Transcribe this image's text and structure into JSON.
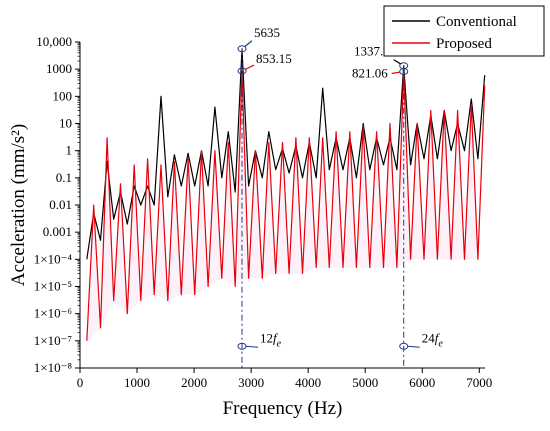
{
  "chart_data": {
    "type": "line",
    "title": "",
    "xlabel": "Frequency (Hz)",
    "ylabel": "Acceleration (mm/s²)",
    "xlim": [
      0,
      7100
    ],
    "ylim_log10": [
      -8,
      4
    ],
    "log_y": true,
    "grid": false,
    "legend_position": "top-right",
    "xticks": [
      "0",
      "1000",
      "2000",
      "3000",
      "4000",
      "5000",
      "6000",
      "7000"
    ],
    "xtick_values": [
      0,
      1000,
      2000,
      3000,
      4000,
      5000,
      6000,
      7000
    ],
    "yticks": [
      "1×10⁻⁸",
      "1×10⁻⁷",
      "1×10⁻⁶",
      "1×10⁻⁵",
      "1×10⁻⁴",
      "0.001",
      "0.01",
      "0.1",
      "1",
      "10",
      "100",
      "1000",
      "10,000"
    ],
    "ytick_exponents": [
      -8,
      -7,
      -6,
      -5,
      -4,
      -3,
      -2,
      -1,
      0,
      1,
      2,
      3,
      4
    ],
    "series": [
      {
        "name": "Conventional",
        "color": "#000000",
        "points": [
          [
            120,
            0.0001
          ],
          [
            240,
            0.005
          ],
          [
            360,
            0.0005
          ],
          [
            475,
            0.4
          ],
          [
            590,
            0.003
          ],
          [
            710,
            0.03
          ],
          [
            830,
            0.002
          ],
          [
            950,
            0.05
          ],
          [
            1065,
            0.01
          ],
          [
            1185,
            0.05
          ],
          [
            1300,
            0.01
          ],
          [
            1420,
            100
          ],
          [
            1540,
            0.02
          ],
          [
            1655,
            0.7
          ],
          [
            1775,
            0.05
          ],
          [
            1895,
            0.8
          ],
          [
            2010,
            0.05
          ],
          [
            2130,
            1
          ],
          [
            2245,
            0.05
          ],
          [
            2365,
            40
          ],
          [
            2485,
            0.1
          ],
          [
            2600,
            5
          ],
          [
            2720,
            0.03
          ],
          [
            2840,
            5635
          ],
          [
            2955,
            0.05
          ],
          [
            3075,
            1
          ],
          [
            3195,
            0.1
          ],
          [
            3310,
            5
          ],
          [
            3430,
            0.2
          ],
          [
            3550,
            1.2
          ],
          [
            3665,
            0.15
          ],
          [
            3785,
            1.5
          ],
          [
            3900,
            0.1
          ],
          [
            4020,
            2
          ],
          [
            4140,
            0.1
          ],
          [
            4255,
            200
          ],
          [
            4370,
            0.2
          ],
          [
            4490,
            3
          ],
          [
            4610,
            0.2
          ],
          [
            4730,
            3
          ],
          [
            4845,
            0.1
          ],
          [
            4965,
            10
          ],
          [
            5080,
            0.2
          ],
          [
            5200,
            3
          ],
          [
            5320,
            0.3
          ],
          [
            5435,
            3
          ],
          [
            5555,
            0.2
          ],
          [
            5675,
            1337.9
          ],
          [
            5795,
            0.3
          ],
          [
            5910,
            10
          ],
          [
            6030,
            0.5
          ],
          [
            6150,
            20
          ],
          [
            6265,
            0.5
          ],
          [
            6385,
            30
          ],
          [
            6505,
            1
          ],
          [
            6620,
            10
          ],
          [
            6740,
            1
          ],
          [
            6860,
            80
          ],
          [
            6975,
            0.5
          ],
          [
            7095,
            600
          ]
        ]
      },
      {
        "name": "Proposed",
        "color": "#e8000b",
        "points": [
          [
            120,
            1e-07
          ],
          [
            240,
            0.01
          ],
          [
            360,
            3e-07
          ],
          [
            475,
            3
          ],
          [
            590,
            3e-06
          ],
          [
            710,
            0.06
          ],
          [
            830,
            1e-06
          ],
          [
            950,
            0.3
          ],
          [
            1065,
            3e-06
          ],
          [
            1185,
            0.5
          ],
          [
            1300,
            5e-06
          ],
          [
            1420,
            0.3
          ],
          [
            1540,
            3e-06
          ],
          [
            1655,
            0.4
          ],
          [
            1775,
            5e-06
          ],
          [
            1895,
            0.5
          ],
          [
            2010,
            5e-06
          ],
          [
            2130,
            1
          ],
          [
            2245,
            1e-05
          ],
          [
            2365,
            1
          ],
          [
            2485,
            2e-05
          ],
          [
            2600,
            2
          ],
          [
            2720,
            1e-05
          ],
          [
            2840,
            853.15
          ],
          [
            2955,
            2e-05
          ],
          [
            3075,
            1
          ],
          [
            3195,
            2e-05
          ],
          [
            3310,
            2
          ],
          [
            3430,
            3e-05
          ],
          [
            3550,
            2
          ],
          [
            3665,
            3e-05
          ],
          [
            3785,
            3
          ],
          [
            3900,
            3e-05
          ],
          [
            4020,
            3
          ],
          [
            4140,
            5e-05
          ],
          [
            4255,
            3
          ],
          [
            4370,
            5e-05
          ],
          [
            4490,
            5
          ],
          [
            4610,
            5e-05
          ],
          [
            4730,
            5
          ],
          [
            4845,
            5e-05
          ],
          [
            4965,
            8
          ],
          [
            5080,
            5e-05
          ],
          [
            5200,
            5
          ],
          [
            5320,
            5e-05
          ],
          [
            5435,
            10
          ],
          [
            5555,
            5e-05
          ],
          [
            5675,
            821.06
          ],
          [
            5795,
            0.0001
          ],
          [
            5910,
            10
          ],
          [
            6030,
            0.0001
          ],
          [
            6150,
            30
          ],
          [
            6265,
            0.0001
          ],
          [
            6385,
            30
          ],
          [
            6505,
            0.0001
          ],
          [
            6620,
            30
          ],
          [
            6740,
            0.0001
          ],
          [
            6860,
            50
          ],
          [
            6975,
            0.0001
          ],
          [
            7095,
            250
          ]
        ]
      }
    ],
    "annotations": [
      {
        "text": "5635",
        "x": 2840,
        "y": 5635,
        "color": "#1f3a8a"
      },
      {
        "text": "853.15",
        "x": 2840,
        "y": 853.15,
        "color": "#e8000b"
      },
      {
        "text": "1337.9",
        "x": 5675,
        "y": 1337.9,
        "color": "#000000"
      },
      {
        "text": "821.06",
        "x": 5675,
        "y": 821.06,
        "color": "#e8000b"
      }
    ],
    "harmonic_markers": [
      {
        "label": "12",
        "subscript": "e",
        "x": 2840
      },
      {
        "label": "24",
        "subscript": "e",
        "x": 5675
      }
    ],
    "marker_color": "#1f3a8a"
  }
}
